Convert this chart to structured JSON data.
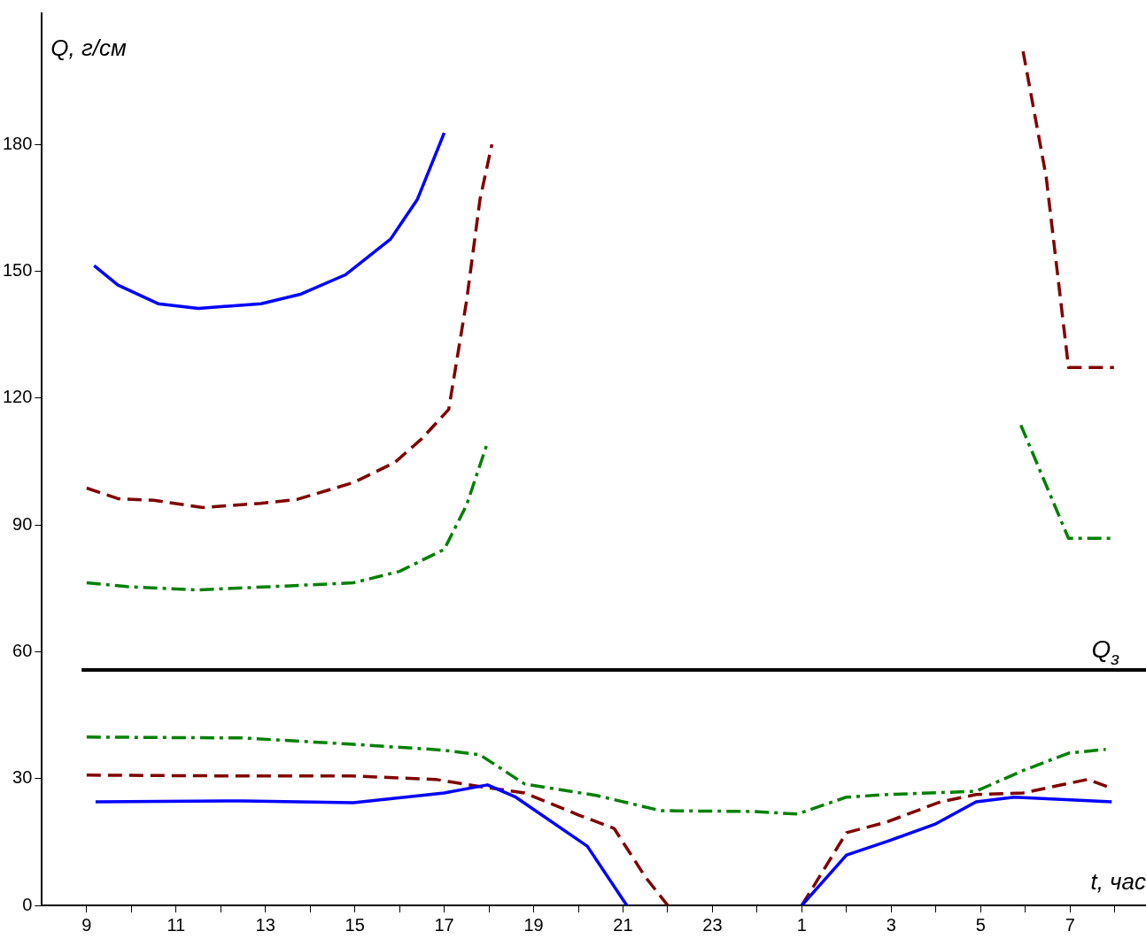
{
  "chart_data": {
    "type": "line",
    "xlabel": "t, час",
    "ylabel": "Q, г/см",
    "xlim": [
      "--01-01T08:00",
      "--01-02T08:42"
    ],
    "ylim": [
      0,
      211
    ],
    "xticks": [
      {
        "value": "--01-01T09:00",
        "label": "9"
      },
      {
        "value": "--01-01T10:00",
        "label": null
      },
      {
        "value": "--01-01T11:00",
        "label": "11"
      },
      {
        "value": "--01-01T12:00",
        "label": null
      },
      {
        "value": "--01-01T13:00",
        "label": "13"
      },
      {
        "value": "--01-01T14:00",
        "label": null
      },
      {
        "value": "--01-01T15:00",
        "label": "15"
      },
      {
        "value": "--01-01T16:00",
        "label": null
      },
      {
        "value": "--01-01T17:00",
        "label": "17"
      },
      {
        "value": "--01-01T18:00",
        "label": null
      },
      {
        "value": "--01-01T19:00",
        "label": "19"
      },
      {
        "value": "--01-01T20:00",
        "label": null
      },
      {
        "value": "--01-01T21:00",
        "label": "21"
      },
      {
        "value": "--01-01T22:00",
        "label": null
      },
      {
        "value": "--01-01T23:00",
        "label": "23"
      },
      {
        "value": "--01-02T00:00",
        "label": null
      },
      {
        "value": "--01-02T01:00",
        "label": "1"
      },
      {
        "value": "--01-02T02:00",
        "label": null
      },
      {
        "value": "--01-02T03:00",
        "label": "3"
      },
      {
        "value": "--01-02T04:00",
        "label": null
      },
      {
        "value": "--01-02T05:00",
        "label": "5"
      },
      {
        "value": "--01-02T06:00",
        "label": null
      },
      {
        "value": "--01-02T07:00",
        "label": "7"
      },
      {
        "value": "--01-02T08:00",
        "label": null
      }
    ],
    "yticks": [
      0,
      30,
      60,
      90,
      120,
      150,
      180
    ],
    "grid": false,
    "legend": false,
    "marker": "none",
    "series": [
      {
        "color": "#0000ff",
        "line_style": "solid",
        "x": [
          "--01-01T09:10",
          "--01-01T09:42",
          "--01-01T10:36",
          "--01-01T11:30",
          "--01-01T12:54",
          "--01-01T13:48",
          "--01-01T14:48",
          "--01-01T15:48",
          "--01-01T16:24",
          "--01-01T17:00"
        ],
        "values": [
          151.3,
          146.7,
          142.3,
          141.2,
          142.3,
          144.6,
          149.2,
          157.6,
          167,
          182.7
        ]
      },
      {
        "color": "#800000",
        "line_style": "dashed",
        "x": [
          "--01-01T09:00",
          "--01-01T09:42",
          "--01-01T10:30",
          "--01-01T11:36",
          "--01-01T12:54",
          "--01-01T13:42",
          "--01-01T14:58",
          "--01-01T15:54",
          "--01-01T16:30",
          "--01-01T17:06",
          "--01-01T17:30",
          "--01-01T17:48",
          "--01-01T18:04",
          "--01-02T00:00",
          "--01-02T05:57",
          "--01-02T06:28",
          "--01-02T06:58",
          "--01-02T07:59"
        ],
        "values": [
          98.7,
          96.2,
          95.8,
          94.1,
          95.1,
          96,
          100,
          104.8,
          110.4,
          117.3,
          143,
          167,
          180,
          null,
          202,
          172.3,
          127.2,
          127.2
        ]
      },
      {
        "color": "#008000",
        "line_style": "dashdot",
        "x": [
          "--01-01T09:00",
          "--01-01T09:54",
          "--01-01T11:30",
          "--01-01T13:09",
          "--01-01T14:58",
          "--01-01T16:00",
          "--01-01T17:00",
          "--01-01T17:30",
          "--01-01T17:58",
          "--01-02T00:00",
          "--01-02T05:54",
          "--01-02T06:58",
          "--01-02T07:56"
        ],
        "values": [
          76.3,
          75.4,
          74.6,
          75.4,
          76.3,
          79,
          84.2,
          94.7,
          109.4,
          null,
          113.6,
          86.8,
          86.8
        ]
      },
      {
        "color": "#0000ff",
        "line_style": "solid",
        "x": [
          "--01-01T09:12",
          "--01-01T12:30",
          "--01-01T14:58",
          "--01-01T17:00",
          "--01-01T17:58",
          "--01-01T18:36",
          "--01-01T20:12",
          "--01-01T21:05",
          "--01-01T23:00",
          "--01-02T01:00",
          "--01-02T02:00",
          "--01-02T02:54",
          "--01-02T04:00",
          "--01-02T04:54",
          "--01-02T05:45",
          "--01-02T07:56"
        ],
        "values": [
          24.5,
          24.7,
          24.3,
          26.6,
          28.5,
          25.6,
          14,
          0,
          null,
          0,
          11.9,
          15.1,
          19.3,
          24.5,
          25.6,
          24.5
        ]
      },
      {
        "color": "#800000",
        "line_style": "dashed",
        "x": [
          "--01-01T09:00",
          "--01-01T12:30",
          "--01-01T14:58",
          "--01-01T16:48",
          "--01-01T17:48",
          "--01-01T18:48",
          "--01-01T20:00",
          "--01-01T20:48",
          "--01-01T21:30",
          "--01-01T22:00",
          "--01-01T23:30",
          "--01-02T01:00",
          "--01-02T02:00",
          "--01-02T02:54",
          "--01-02T04:06",
          "--01-02T04:54",
          "--01-02T05:57",
          "--01-02T07:24",
          "--01-02T07:56"
        ],
        "values": [
          30.8,
          30.6,
          30.6,
          29.8,
          28.1,
          26.6,
          21.4,
          18.2,
          6.7,
          0,
          null,
          0,
          17.2,
          19.7,
          24.5,
          26.2,
          26.6,
          29.8,
          27.7
        ]
      },
      {
        "color": "#008000",
        "line_style": "dashdot",
        "x": [
          "--01-01T09:00",
          "--01-01T12:30",
          "--01-01T14:58",
          "--01-01T17:00",
          "--01-01T17:48",
          "--01-01T18:48",
          "--01-01T20:24",
          "--01-01T21:51",
          "--01-01T23:54",
          "--01-02T00:54",
          "--01-02T02:00",
          "--01-02T02:54",
          "--01-02T04:54",
          "--01-02T05:57",
          "--01-02T06:58",
          "--01-02T07:48"
        ],
        "values": [
          39.8,
          39.6,
          38.1,
          36.7,
          35.6,
          28.7,
          26,
          22.4,
          22.2,
          21.6,
          25.6,
          26.2,
          27,
          31.9,
          36,
          36.9
        ]
      }
    ],
    "ref_lines": [
      {
        "axis": "y",
        "value": 55.7,
        "label": "Q$_{з}$",
        "color": "#000000",
        "line_style": "solid"
      }
    ]
  }
}
